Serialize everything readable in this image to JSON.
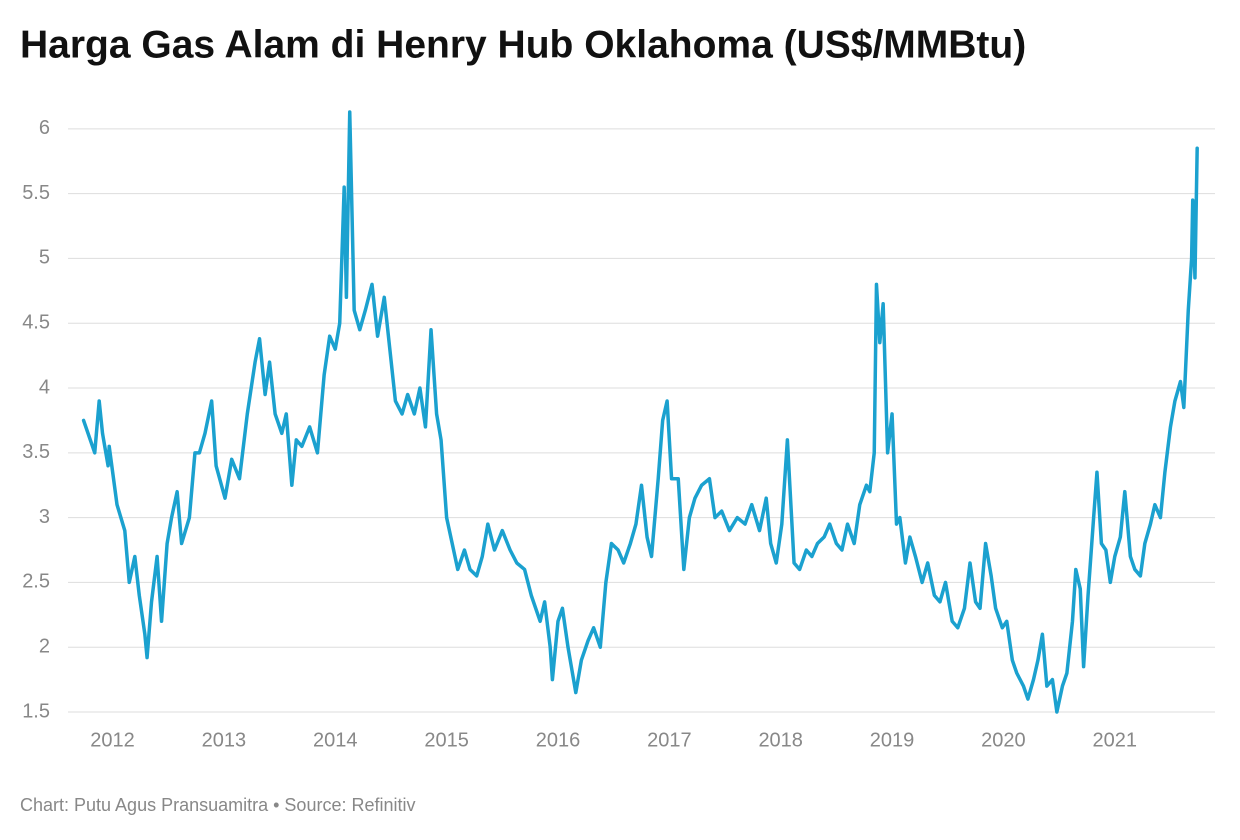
{
  "chart_data": {
    "type": "line",
    "title": "Harga Gas Alam di Henry Hub Oklahoma (US$/MMBtu)",
    "note": "Chart: Putu Agus Pransuamitra • Source: Refinitiv",
    "color": "#1ba1cf",
    "xlim": [
      2011.6,
      2021.9
    ],
    "xticks": [
      2012,
      2013,
      2014,
      2015,
      2016,
      2017,
      2018,
      2019,
      2020,
      2021
    ],
    "ylim": [
      1.5,
      6.15
    ],
    "yticks": [
      1.5,
      2,
      2.5,
      3,
      3.5,
      4,
      4.5,
      5,
      5.5,
      6
    ],
    "grid": true,
    "x": [
      2011.74,
      2011.84,
      2011.88,
      2011.91,
      2011.96,
      2011.97,
      2012.04,
      2012.11,
      2012.15,
      2012.2,
      2012.24,
      2012.29,
      2012.31,
      2012.35,
      2012.4,
      2012.44,
      2012.49,
      2012.53,
      2012.58,
      2012.62,
      2012.69,
      2012.74,
      2012.78,
      2012.83,
      2012.89,
      2012.93,
      2013.01,
      2013.07,
      2013.14,
      2013.21,
      2013.28,
      2013.32,
      2013.37,
      2013.41,
      2013.46,
      2013.52,
      2013.56,
      2013.61,
      2013.65,
      2013.7,
      2013.77,
      2013.84,
      2013.9,
      2013.95,
      2014.0,
      2014.04,
      2014.08,
      2014.1,
      2014.13,
      2014.17,
      2014.22,
      2014.27,
      2014.33,
      2014.38,
      2014.44,
      2014.49,
      2014.54,
      2014.6,
      2014.65,
      2014.71,
      2014.76,
      2014.81,
      2014.86,
      2014.91,
      2014.95,
      2015.0,
      2015.05,
      2015.1,
      2015.16,
      2015.21,
      2015.27,
      2015.32,
      2015.37,
      2015.43,
      2015.5,
      2015.57,
      2015.63,
      2015.7,
      2015.76,
      2015.84,
      2015.88,
      2015.93,
      2015.95,
      2016.0,
      2016.04,
      2016.09,
      2016.12,
      2016.16,
      2016.21,
      2016.27,
      2016.32,
      2016.38,
      2016.43,
      2016.48,
      2016.54,
      2016.59,
      2016.65,
      2016.7,
      2016.75,
      2016.8,
      2016.84,
      2016.9,
      2016.94,
      2016.98,
      2017.02,
      2017.08,
      2017.13,
      2017.18,
      2017.23,
      2017.29,
      2017.36,
      2017.41,
      2017.47,
      2017.54,
      2017.61,
      2017.68,
      2017.74,
      2017.81,
      2017.87,
      2017.91,
      2017.96,
      2018.01,
      2018.06,
      2018.12,
      2018.17,
      2018.23,
      2018.28,
      2018.33,
      2018.39,
      2018.44,
      2018.5,
      2018.55,
      2018.6,
      2018.66,
      2018.71,
      2018.77,
      2018.8,
      2018.84,
      2018.86,
      2018.89,
      2018.92,
      2018.96,
      2019.0,
      2019.04,
      2019.07,
      2019.12,
      2019.16,
      2019.21,
      2019.27,
      2019.32,
      2019.38,
      2019.43,
      2019.48,
      2019.54,
      2019.59,
      2019.65,
      2019.7,
      2019.75,
      2019.79,
      2019.84,
      2019.89,
      2019.93,
      2019.99,
      2020.03,
      2020.08,
      2020.12,
      2020.18,
      2020.22,
      2020.27,
      2020.31,
      2020.35,
      2020.39,
      2020.44,
      2020.48,
      2020.53,
      2020.57,
      2020.62,
      2020.65,
      2020.69,
      2020.72,
      2020.76,
      2020.81,
      2020.84,
      2020.88,
      2020.92,
      2020.96,
      2021.0,
      2021.05,
      2021.09,
      2021.14,
      2021.18,
      2021.23,
      2021.27,
      2021.32,
      2021.36,
      2021.41,
      2021.45,
      2021.5,
      2021.54,
      2021.59,
      2021.62,
      2021.66,
      2021.69,
      2021.7,
      2021.72,
      2021.74
    ],
    "values": [
      3.75,
      3.5,
      3.9,
      3.65,
      3.4,
      3.55,
      3.1,
      2.9,
      2.5,
      2.7,
      2.4,
      2.1,
      1.92,
      2.35,
      2.7,
      2.2,
      2.8,
      3.0,
      3.2,
      2.8,
      3.0,
      3.5,
      3.5,
      3.65,
      3.9,
      3.4,
      3.15,
      3.45,
      3.3,
      3.8,
      4.2,
      4.38,
      3.95,
      4.2,
      3.8,
      3.65,
      3.8,
      3.25,
      3.6,
      3.55,
      3.7,
      3.5,
      4.1,
      4.4,
      4.3,
      4.5,
      5.55,
      4.7,
      6.13,
      4.6,
      4.45,
      4.6,
      4.8,
      4.4,
      4.7,
      4.3,
      3.9,
      3.8,
      3.95,
      3.8,
      4.0,
      3.7,
      4.45,
      3.8,
      3.6,
      3.0,
      2.8,
      2.6,
      2.75,
      2.6,
      2.55,
      2.7,
      2.95,
      2.75,
      2.9,
      2.75,
      2.65,
      2.6,
      2.4,
      2.2,
      2.35,
      2.0,
      1.75,
      2.2,
      2.3,
      2.0,
      1.85,
      1.65,
      1.9,
      2.05,
      2.15,
      2.0,
      2.5,
      2.8,
      2.75,
      2.65,
      2.8,
      2.95,
      3.25,
      2.85,
      2.7,
      3.3,
      3.75,
      3.9,
      3.3,
      3.3,
      2.6,
      3.0,
      3.15,
      3.25,
      3.3,
      3.0,
      3.05,
      2.9,
      3.0,
      2.95,
      3.1,
      2.9,
      3.15,
      2.8,
      2.65,
      2.95,
      3.6,
      2.65,
      2.6,
      2.75,
      2.7,
      2.8,
      2.85,
      2.95,
      2.8,
      2.75,
      2.95,
      2.8,
      3.1,
      3.25,
      3.2,
      3.5,
      4.8,
      4.35,
      4.65,
      3.5,
      3.8,
      2.95,
      3.0,
      2.65,
      2.85,
      2.7,
      2.5,
      2.65,
      2.4,
      2.35,
      2.5,
      2.2,
      2.15,
      2.3,
      2.65,
      2.35,
      2.3,
      2.8,
      2.55,
      2.3,
      2.15,
      2.2,
      1.9,
      1.8,
      1.7,
      1.6,
      1.75,
      1.9,
      2.1,
      1.7,
      1.75,
      1.5,
      1.7,
      1.8,
      2.2,
      2.6,
      2.45,
      1.85,
      2.4,
      3.0,
      3.35,
      2.8,
      2.75,
      2.5,
      2.7,
      2.85,
      3.2,
      2.7,
      2.6,
      2.55,
      2.8,
      2.95,
      3.1,
      3.0,
      3.35,
      3.7,
      3.9,
      4.05,
      3.85,
      4.6,
      5.0,
      5.45,
      4.85,
      5.85
    ]
  }
}
